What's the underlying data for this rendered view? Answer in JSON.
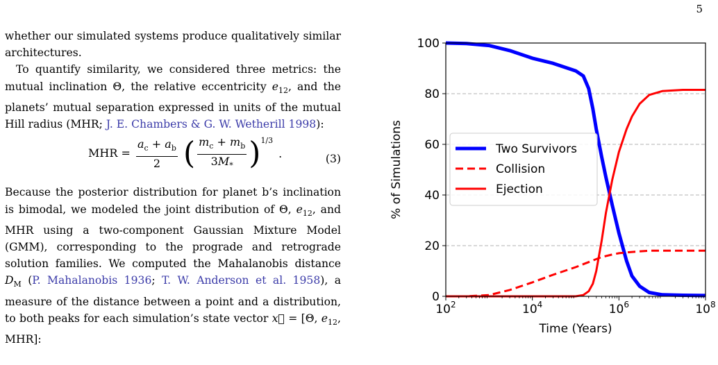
{
  "page_number": "5",
  "text": {
    "p1": "whether our simulated systems produce qualitatively similar architectures.",
    "p2_a": "To quantify similarity, we considered three metrics: the mutual inclination Θ, the relative eccentricity ",
    "p2_e": "e",
    "p2_e_sub": "12",
    "p2_b": ", and the planets’ mutual separation expressed in units of the mutual Hill radius (MHR; ",
    "p2_cite": "J. E. Chambers & G. W. Wetherill 1998",
    "p2_c": "):",
    "eq_lhs": "MHR =",
    "eq_num1": "a",
    "eq_num1_sub": "c",
    "eq_num_plus": " + ",
    "eq_num2": "a",
    "eq_num2_sub": "b",
    "eq_den": "2",
    "eq_inner_num1": "m",
    "eq_inner_num1_sub": "c",
    "eq_inner_num2": "m",
    "eq_inner_num2_sub": "b",
    "eq_inner_den": "3",
    "eq_inner_den_m": "M",
    "eq_inner_den_sub": "*",
    "eq_exp": "1/3",
    "eq_end": ".",
    "eq_number": "(3)",
    "p3_a": "Because the posterior distribution for planet b’s inclination is bimodal, we modeled the joint distribution of Θ, ",
    "p3_e": "e",
    "p3_e_sub": "12",
    "p3_b": ", and MHR using a two-component Gaussian Mixture Model (GMM), corresponding to the prograde and retrograde solution families. We computed the Mahalanobis distance ",
    "p3_d": "D",
    "p3_d_sub": "M",
    "p3_c": " (",
    "p3_cite1": "P. Mahalanobis 1936",
    "p3_sep": "; ",
    "p3_cite2": "T. W. Anderson et al. 1958",
    "p3_d2": "), a measure of the distance between a point and a distribution, to both peaks for each simulation’s state vector ",
    "p3_vec": "x⃗",
    "p3_e2": " = [Θ, ",
    "p3_e3": "e",
    "p3_e3_sub": "12",
    "p3_e4": ", MHR]:"
  },
  "chart_data": {
    "type": "line",
    "title": "",
    "xlabel": "Time (Years)",
    "ylabel": "% of Simulations",
    "xscale": "log",
    "xlim": [
      100,
      100000000
    ],
    "ylim": [
      0,
      100
    ],
    "xticks": [
      100,
      10000,
      1000000,
      100000000
    ],
    "xtick_labels": [
      {
        "base": "10",
        "exp": "2"
      },
      {
        "base": "10",
        "exp": "4"
      },
      {
        "base": "10",
        "exp": "6"
      },
      {
        "base": "10",
        "exp": "8"
      }
    ],
    "yticks": [
      0,
      20,
      40,
      60,
      80,
      100
    ],
    "ytick_labels": [
      "0",
      "20",
      "40",
      "60",
      "80",
      "100"
    ],
    "grid": "horizontal dashed",
    "legend_position": "center-left",
    "series": [
      {
        "name": "Two Survivors",
        "color": "#0000ff",
        "style": "solid",
        "x": [
          100,
          300,
          1000,
          3000,
          10000,
          30000,
          100000,
          150000,
          200000,
          250000,
          300000,
          400000,
          500000,
          700000,
          1000000,
          1500000,
          2000000,
          3000000,
          5000000,
          10000000,
          30000000,
          100000000
        ],
        "y": [
          100,
          99.8,
          99,
          97,
          94,
          92,
          89,
          87,
          82,
          74,
          66,
          55,
          47,
          36,
          25,
          14,
          8,
          4,
          1.5,
          0.6,
          0.4,
          0.3
        ]
      },
      {
        "name": "Collision",
        "color": "#ff0000",
        "style": "dashed",
        "x": [
          100,
          300,
          1000,
          3000,
          10000,
          30000,
          100000,
          200000,
          400000,
          700000,
          1000000,
          2000000,
          5000000,
          10000000,
          30000000,
          100000000
        ],
        "y": [
          0,
          0,
          0.5,
          2.5,
          5.5,
          8.5,
          11.5,
          13.5,
          15.5,
          16.5,
          17,
          17.5,
          18,
          18,
          18,
          18
        ]
      },
      {
        "name": "Ejection",
        "color": "#ff0000",
        "style": "solid",
        "x": [
          100,
          1000,
          10000,
          100000,
          150000,
          200000,
          250000,
          300000,
          400000,
          500000,
          700000,
          1000000,
          1500000,
          2000000,
          3000000,
          5000000,
          10000000,
          30000000,
          100000000
        ],
        "y": [
          0,
          0,
          0,
          0,
          0.5,
          2,
          5,
          10,
          22,
          33,
          46,
          57,
          66,
          71,
          76,
          79.5,
          81,
          81.5,
          81.5
        ]
      }
    ]
  }
}
